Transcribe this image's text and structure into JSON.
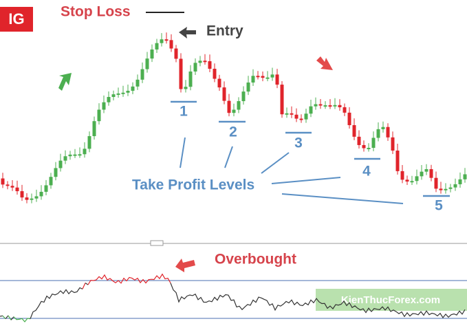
{
  "logo": "IG",
  "stop_loss": "Stop Loss",
  "entry": "Entry",
  "levels": [
    "1",
    "2",
    "3",
    "4",
    "5"
  ],
  "take_profit": "Take Profit Levels",
  "overbought": "Overbought",
  "watermark": "KienThucForex.com"
}
